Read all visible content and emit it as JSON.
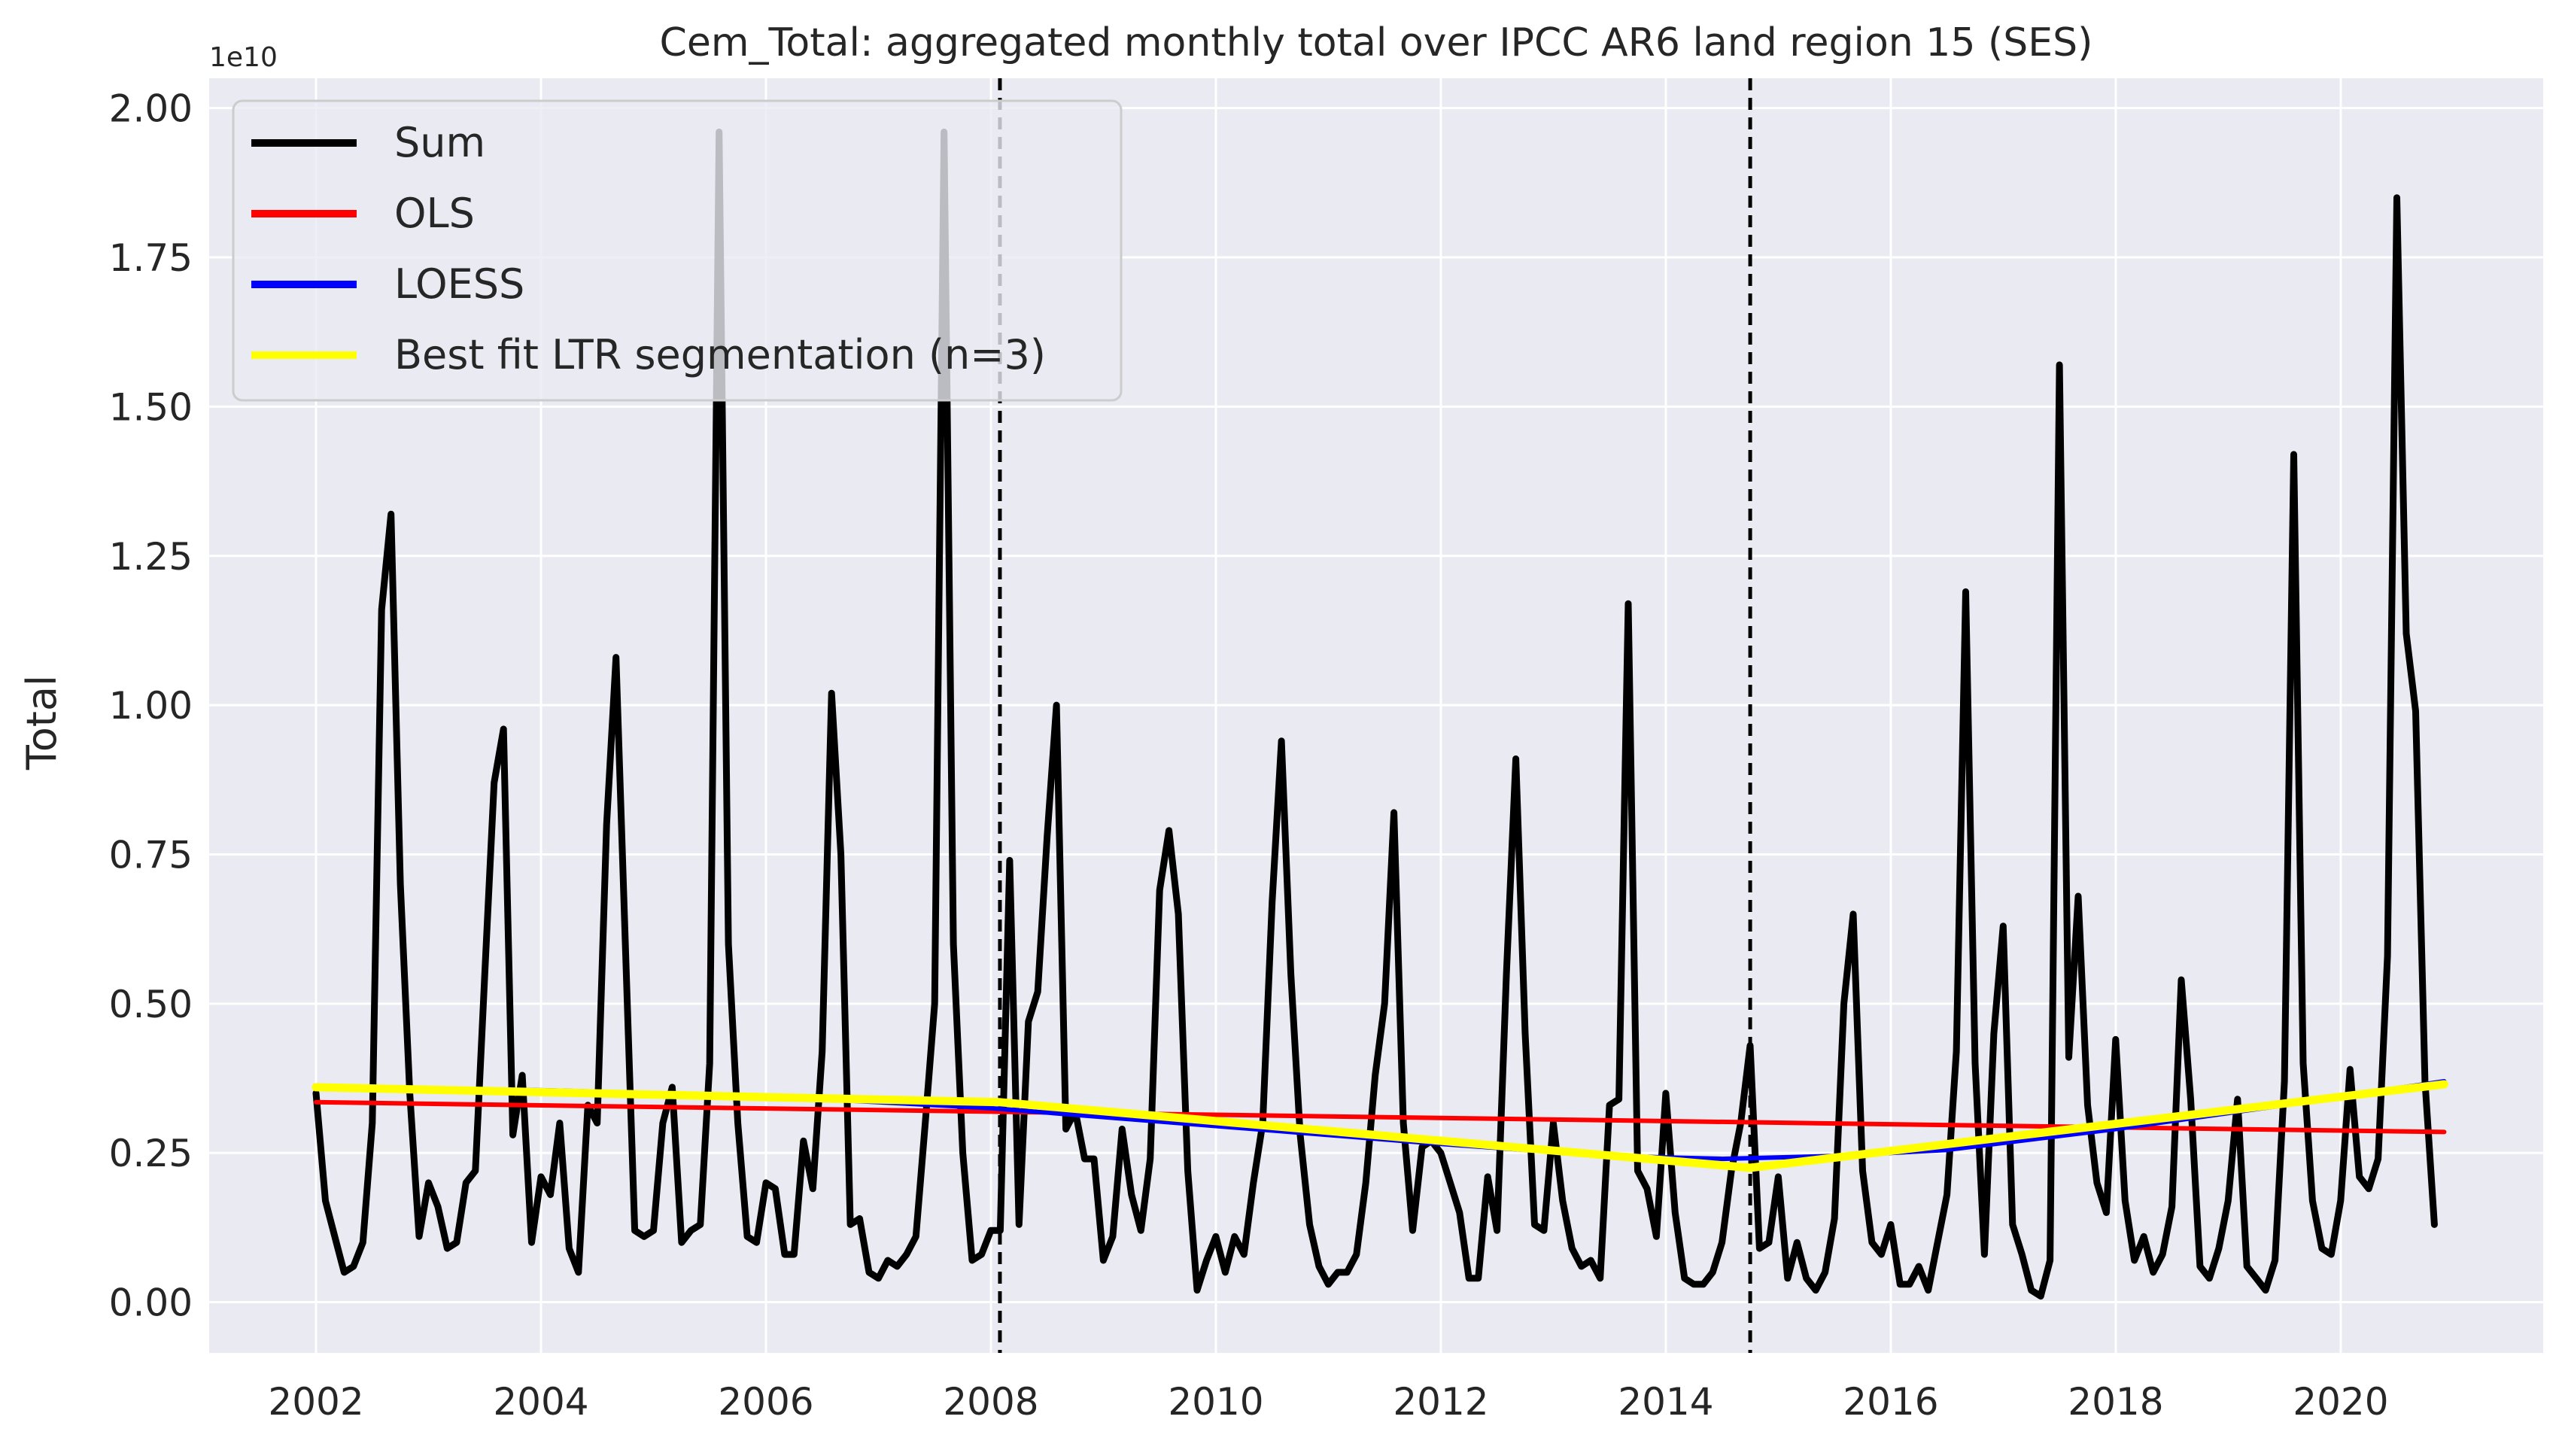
{
  "chart_data": {
    "type": "line",
    "title": "Cem_Total: aggregated monthly total over IPCC AR6 land region 15 (SES)",
    "xlabel": "",
    "ylabel": "Total",
    "y_offset_label": "1e10",
    "y_scale_exponent": 10,
    "xlim": [
      2001.05,
      2021.8
    ],
    "ylim": [
      -0.085,
      2.05
    ],
    "x_ticks": [
      2002,
      2004,
      2006,
      2008,
      2010,
      2012,
      2014,
      2016,
      2018,
      2020
    ],
    "x_tick_labels": [
      "2002",
      "2004",
      "2006",
      "2008",
      "2010",
      "2012",
      "2014",
      "2016",
      "2018",
      "2020"
    ],
    "y_ticks": [
      0.0,
      0.25,
      0.5,
      0.75,
      1.0,
      1.25,
      1.5,
      1.75,
      2.0
    ],
    "y_tick_labels": [
      "0.00",
      "0.25",
      "0.50",
      "0.75",
      "1.00",
      "1.25",
      "1.50",
      "1.75",
      "2.00"
    ],
    "grid": true,
    "background": "#eaeaf2",
    "legend_position": "top-left",
    "legend": [
      {
        "label": "Sum",
        "color": "#000000"
      },
      {
        "label": "OLS",
        "color": "#ff0000"
      },
      {
        "label": "LOESS",
        "color": "#0000ff"
      },
      {
        "label": "Best fit LTR segmentation (n=3)",
        "color": "#ffff00"
      }
    ],
    "breakpoints": [
      2008.08,
      2014.75
    ],
    "series": [
      {
        "name": "Sum",
        "color": "#000000",
        "x_start": 2002.0,
        "x_step": 0.08333,
        "values": [
          0.35,
          0.17,
          0.11,
          0.05,
          0.06,
          0.1,
          0.3,
          1.16,
          1.32,
          0.7,
          0.35,
          0.11,
          0.2,
          0.16,
          0.09,
          0.1,
          0.2,
          0.22,
          0.55,
          0.87,
          0.96,
          0.28,
          0.38,
          0.1,
          0.21,
          0.18,
          0.3,
          0.09,
          0.05,
          0.33,
          0.3,
          0.8,
          1.08,
          0.6,
          0.12,
          0.11,
          0.12,
          0.3,
          0.36,
          0.1,
          0.12,
          0.13,
          0.4,
          1.96,
          0.6,
          0.3,
          0.11,
          0.1,
          0.2,
          0.19,
          0.08,
          0.08,
          0.27,
          0.19,
          0.42,
          1.02,
          0.75,
          0.13,
          0.14,
          0.05,
          0.04,
          0.07,
          0.06,
          0.08,
          0.11,
          0.3,
          0.5,
          1.96,
          0.6,
          0.25,
          0.07,
          0.08,
          0.12,
          0.12,
          0.74,
          0.13,
          0.47,
          0.52,
          0.78,
          1.0,
          0.29,
          0.32,
          0.24,
          0.24,
          0.07,
          0.11,
          0.29,
          0.18,
          0.12,
          0.24,
          0.69,
          0.79,
          0.65,
          0.22,
          0.02,
          0.07,
          0.11,
          0.05,
          0.11,
          0.08,
          0.2,
          0.3,
          0.67,
          0.94,
          0.55,
          0.28,
          0.13,
          0.06,
          0.03,
          0.05,
          0.05,
          0.08,
          0.2,
          0.38,
          0.5,
          0.82,
          0.3,
          0.12,
          0.26,
          0.27,
          0.25,
          0.2,
          0.15,
          0.04,
          0.04,
          0.21,
          0.12,
          0.55,
          0.91,
          0.45,
          0.13,
          0.12,
          0.3,
          0.17,
          0.09,
          0.06,
          0.07,
          0.04,
          0.33,
          0.34,
          1.17,
          0.22,
          0.19,
          0.11,
          0.35,
          0.15,
          0.04,
          0.03,
          0.03,
          0.05,
          0.1,
          0.22,
          0.3,
          0.43,
          0.09,
          0.1,
          0.21,
          0.04,
          0.1,
          0.04,
          0.02,
          0.05,
          0.14,
          0.5,
          0.65,
          0.22,
          0.1,
          0.08,
          0.13,
          0.03,
          0.03,
          0.06,
          0.02,
          0.1,
          0.18,
          0.42,
          1.19,
          0.4,
          0.08,
          0.45,
          0.63,
          0.13,
          0.08,
          0.02,
          0.01,
          0.07,
          1.57,
          0.41,
          0.68,
          0.33,
          0.2,
          0.15,
          0.44,
          0.17,
          0.07,
          0.11,
          0.05,
          0.08,
          0.16,
          0.54,
          0.34,
          0.06,
          0.04,
          0.09,
          0.17,
          0.34,
          0.06,
          0.04,
          0.02,
          0.07,
          0.37,
          1.42,
          0.4,
          0.17,
          0.09,
          0.08,
          0.17,
          0.39,
          0.21,
          0.19,
          0.24,
          0.58,
          1.85,
          1.12,
          0.99,
          0.37,
          0.13
        ]
      },
      {
        "name": "OLS",
        "color": "#ff0000",
        "points": [
          [
            2002.0,
            0.335
          ],
          [
            2020.92,
            0.285
          ]
        ]
      },
      {
        "name": "LOESS",
        "color": "#0000ff",
        "points": [
          [
            2002.0,
            0.36
          ],
          [
            2004.0,
            0.355
          ],
          [
            2006.0,
            0.345
          ],
          [
            2008.0,
            0.325
          ],
          [
            2010.0,
            0.295
          ],
          [
            2012.0,
            0.265
          ],
          [
            2013.5,
            0.245
          ],
          [
            2014.5,
            0.24
          ],
          [
            2015.5,
            0.245
          ],
          [
            2016.5,
            0.255
          ],
          [
            2018.0,
            0.29
          ],
          [
            2019.5,
            0.33
          ],
          [
            2020.92,
            0.37
          ]
        ]
      },
      {
        "name": "Best fit LTR segmentation (n=3)",
        "color": "#ffff00",
        "points": [
          [
            2002.0,
            0.36
          ],
          [
            2008.08,
            0.335
          ],
          [
            2014.75,
            0.225
          ],
          [
            2020.92,
            0.365
          ]
        ]
      }
    ]
  }
}
